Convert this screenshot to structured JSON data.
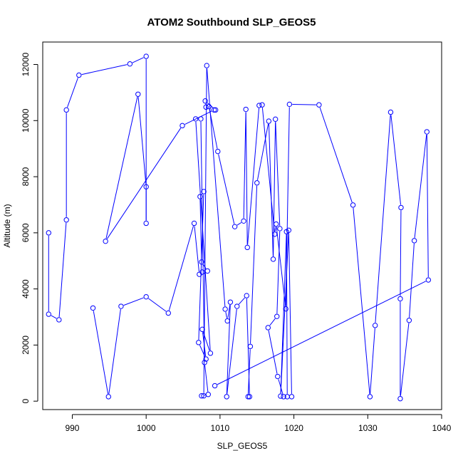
{
  "chart_data": {
    "type": "line",
    "title": "ATOM2 Southbound SLP_GEOS5",
    "xlabel": "SLP_GEOS5",
    "ylabel": "Altitude (m)",
    "xlim": [
      986,
      1040
    ],
    "ylim": [
      -300,
      12800
    ],
    "xticks": [
      990,
      1000,
      1010,
      1020,
      1030,
      1040
    ],
    "yticks": [
      0,
      2000,
      4000,
      6000,
      8000,
      10000,
      12000
    ],
    "grid": false,
    "legend": "none",
    "line_color": "#0000ff",
    "marker": "open-circle",
    "series": [
      {
        "x": [
          986.8,
          986.8,
          988.2,
          989.2,
          989.2,
          990.9,
          997.8,
          1000.0,
          1000.0,
          1000.0,
          998.9,
          994.5,
          1004.9,
          1009.2,
          1009.4,
          1008.0,
          1008.1,
          1008.5,
          1009.7,
          1012.0,
          1013.2,
          1013.5,
          1013.7,
          1015.3,
          1015.7,
          1017.4,
          1017.6,
          1018.9,
          1019.4,
          1023.4,
          1028.0,
          1030.3,
          1031.0,
          1033.1,
          1034.5,
          1034.4,
          1034.4,
          1035.6,
          1036.3,
          1038.0,
          1038.2,
          1009.3
        ],
        "y": [
          6000,
          3100,
          2900,
          6460,
          10380,
          11620,
          12020,
          12290,
          6340,
          7640,
          10940,
          5700,
          9820,
          10380,
          10380,
          10700,
          10480,
          10500,
          8900,
          6220,
          6420,
          10400,
          5480,
          10540,
          10560,
          5950,
          6310,
          3290,
          10580,
          10560,
          6990,
          160,
          2700,
          10300,
          6900,
          3650,
          90,
          2880,
          5720,
          9600,
          4320,
          550
        ]
      },
      {
        "x": [
          992.8,
          994.9,
          996.6,
          1000.0,
          1003.0,
          1006.5,
          1007.2,
          1007.6,
          1008.3,
          1007.5,
          1007.3,
          1007.8,
          1007.1,
          1008.1,
          1007.6,
          1008.7,
          1006.7,
          1007.4,
          1007.9,
          1008.4,
          1007.5,
          1007.8,
          1008.2,
          1010.7,
          1011.0,
          1011.4,
          1010.9,
          1012.3,
          1013.6,
          1014.0,
          1013.8,
          1014.1,
          1015.0,
          1016.6,
          1017.2,
          1017.5,
          1018.1,
          1017.7,
          1016.5,
          1017.8,
          1018.6,
          1019.1,
          1019.0,
          1018.2,
          1019.3,
          1019.7
        ],
        "y": [
          3320,
          160,
          3380,
          3720,
          3140,
          6340,
          4520,
          4600,
          4640,
          4960,
          7290,
          7470,
          2090,
          1500,
          2560,
          1710,
          10060,
          10060,
          1380,
          240,
          190,
          190,
          11960,
          3280,
          2860,
          3530,
          160,
          3380,
          3760,
          160,
          160,
          1950,
          7780,
          9980,
          5060,
          10050,
          6150,
          3020,
          2620,
          880,
          160,
          160,
          6040,
          180,
          6090,
          160
        ]
      }
    ]
  }
}
